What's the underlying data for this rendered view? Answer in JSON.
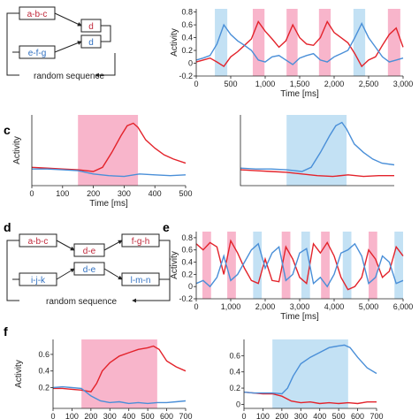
{
  "colors": {
    "red": "#e3232b",
    "blue": "#4a8fd8",
    "pink_shade": "#f7a8c2",
    "blue_shade": "#b9dcf2",
    "box_red": "#c0283a",
    "box_blue": "#2f6fc0"
  },
  "panel_labels": {
    "c": "c",
    "d": "d",
    "e": "e",
    "f": "f"
  },
  "diagram_top": {
    "box_upper": "a-b-c",
    "box_lower": "e-f-g",
    "node_upper": "d",
    "node_lower": "d",
    "footer": "random sequence"
  },
  "diagram_d": {
    "box_left_upper": "a-b-c",
    "box_left_lower": "i-j-k",
    "mid_upper": "d-e",
    "mid_lower": "d-e",
    "box_right_upper": "f-g-h",
    "box_right_lower": "l-m-n",
    "footer": "random sequence"
  },
  "chart_data": [
    {
      "id": "top-right",
      "type": "line",
      "ylabel": "Activity",
      "xlabel": "Time [ms]",
      "xlim": [
        0,
        3000
      ],
      "ylim": [
        -0.2,
        0.85
      ],
      "xticks": [
        "0",
        "500",
        "1,000",
        "1,500",
        "2,000",
        "2,500",
        "3,000"
      ],
      "yticks": [
        "0.8",
        "0.6",
        "0.4",
        "0.2",
        "0",
        "-0.2"
      ],
      "shading": [
        {
          "color": "blue",
          "from": 270,
          "to": 450
        },
        {
          "color": "pink",
          "from": 820,
          "to": 990
        },
        {
          "color": "pink",
          "from": 1310,
          "to": 1470
        },
        {
          "color": "pink",
          "from": 1780,
          "to": 1950
        },
        {
          "color": "blue",
          "from": 2280,
          "to": 2450
        },
        {
          "color": "pink",
          "from": 2780,
          "to": 2960
        }
      ],
      "series": [
        {
          "color": "red",
          "x": [
            0,
            100,
            200,
            300,
            400,
            500,
            600,
            700,
            800,
            900,
            1000,
            1100,
            1200,
            1300,
            1400,
            1500,
            1600,
            1700,
            1800,
            1900,
            2000,
            2100,
            2200,
            2300,
            2400,
            2500,
            2600,
            2700,
            2800,
            2900,
            3000
          ],
          "values": [
            0.02,
            0.05,
            0.08,
            0.02,
            -0.05,
            0.1,
            0.18,
            0.28,
            0.38,
            0.65,
            0.5,
            0.38,
            0.25,
            0.35,
            0.6,
            0.4,
            0.3,
            0.28,
            0.4,
            0.65,
            0.48,
            0.4,
            0.32,
            0.15,
            -0.05,
            0.05,
            0.1,
            0.28,
            0.45,
            0.55,
            0.25
          ]
        },
        {
          "color": "blue",
          "x": [
            0,
            100,
            200,
            300,
            400,
            500,
            600,
            700,
            800,
            900,
            1000,
            1100,
            1200,
            1300,
            1400,
            1500,
            1600,
            1700,
            1800,
            1900,
            2000,
            2100,
            2200,
            2300,
            2400,
            2500,
            2600,
            2700,
            2800,
            2900,
            3000
          ],
          "values": [
            0.05,
            0.08,
            0.12,
            0.3,
            0.6,
            0.45,
            0.35,
            0.28,
            0.2,
            0.05,
            0.02,
            0.1,
            0.12,
            0.05,
            -0.02,
            0.08,
            0.12,
            0.15,
            0.05,
            0.02,
            0.1,
            0.15,
            0.2,
            0.4,
            0.62,
            0.4,
            0.25,
            0.1,
            0.02,
            0.05,
            0.08
          ]
        }
      ]
    },
    {
      "id": "c-left",
      "type": "line",
      "ylabel": "Activity",
      "xlabel": "Time [ms]",
      "xlim": [
        0,
        500
      ],
      "ylim": [
        -0.1,
        0.75
      ],
      "xticks": [
        "0",
        "100",
        "200",
        "300",
        "400",
        "500"
      ],
      "shading": [
        {
          "color": "pink",
          "from": 150,
          "to": 345
        }
      ],
      "series": [
        {
          "color": "red",
          "x": [
            0,
            50,
            100,
            150,
            200,
            230,
            260,
            290,
            310,
            330,
            345,
            370,
            400,
            430,
            460,
            500
          ],
          "values": [
            0.12,
            0.11,
            0.1,
            0.09,
            0.07,
            0.12,
            0.3,
            0.5,
            0.62,
            0.65,
            0.6,
            0.45,
            0.35,
            0.27,
            0.22,
            0.17
          ]
        },
        {
          "color": "blue",
          "x": [
            0,
            50,
            100,
            150,
            200,
            250,
            300,
            350,
            400,
            450,
            500
          ],
          "values": [
            0.1,
            0.1,
            0.09,
            0.08,
            0.04,
            0.02,
            0.01,
            0.04,
            0.03,
            0.02,
            0.03
          ]
        }
      ]
    },
    {
      "id": "c-right",
      "type": "line",
      "xlim": [
        0,
        500
      ],
      "ylim": [
        -0.1,
        0.75
      ],
      "shading": [
        {
          "color": "blue",
          "from": 150,
          "to": 345
        }
      ],
      "series": [
        {
          "color": "red",
          "x": [
            0,
            50,
            100,
            150,
            200,
            250,
            300,
            350,
            400,
            450,
            500
          ],
          "values": [
            0.09,
            0.08,
            0.07,
            0.06,
            0.04,
            0.02,
            0.01,
            0.03,
            0.01,
            0.02,
            0.02
          ]
        },
        {
          "color": "blue",
          "x": [
            0,
            50,
            100,
            150,
            200,
            230,
            260,
            290,
            310,
            330,
            345,
            370,
            400,
            430,
            460,
            500
          ],
          "values": [
            0.11,
            0.1,
            0.1,
            0.09,
            0.07,
            0.12,
            0.3,
            0.5,
            0.62,
            0.66,
            0.58,
            0.4,
            0.3,
            0.22,
            0.17,
            0.15
          ]
        }
      ]
    },
    {
      "id": "e",
      "type": "line",
      "ylabel": "Activity",
      "xlabel": "Time [ms]",
      "xlim": [
        0,
        6000
      ],
      "ylim": [
        -0.2,
        0.9
      ],
      "xticks": [
        "0",
        "1,000",
        "2,000",
        "3,000",
        "4,000",
        "5,000",
        "6,000"
      ],
      "yticks": [
        "0.8",
        "0.6",
        "0.4",
        "0.2",
        "0",
        "-0.2"
      ],
      "shading": [
        {
          "color": "pink",
          "from": 180,
          "to": 430
        },
        {
          "color": "pink",
          "from": 900,
          "to": 1150
        },
        {
          "color": "blue",
          "from": 1650,
          "to": 1900
        },
        {
          "color": "pink",
          "from": 2480,
          "to": 2730
        },
        {
          "color": "blue",
          "from": 3050,
          "to": 3300
        },
        {
          "color": "pink",
          "from": 3620,
          "to": 3870
        },
        {
          "color": "blue",
          "from": 4250,
          "to": 4500
        },
        {
          "color": "pink",
          "from": 5000,
          "to": 5250
        },
        {
          "color": "blue",
          "from": 5750,
          "to": 6000
        }
      ],
      "series": [
        {
          "color": "red",
          "x": [
            0,
            200,
            400,
            600,
            800,
            1000,
            1200,
            1400,
            1600,
            1800,
            2000,
            2200,
            2400,
            2600,
            2800,
            3000,
            3200,
            3400,
            3600,
            3800,
            4000,
            4200,
            4400,
            4600,
            4800,
            5000,
            5200,
            5400,
            5600,
            5800,
            6000
          ],
          "values": [
            0.7,
            0.6,
            0.72,
            0.65,
            0.2,
            0.75,
            0.55,
            0.3,
            0.1,
            0.05,
            0.45,
            0.1,
            0.08,
            0.65,
            0.45,
            0.15,
            0.05,
            0.7,
            0.55,
            0.72,
            0.5,
            0.15,
            -0.05,
            0.0,
            0.15,
            0.6,
            0.45,
            0.15,
            0.25,
            0.65,
            0.5
          ]
        },
        {
          "color": "blue",
          "x": [
            0,
            200,
            400,
            600,
            800,
            1000,
            1200,
            1400,
            1600,
            1800,
            2000,
            2200,
            2400,
            2600,
            2800,
            3000,
            3200,
            3400,
            3600,
            3800,
            4000,
            4200,
            4400,
            4600,
            4800,
            5000,
            5200,
            5400,
            5600,
            5800,
            6000
          ],
          "values": [
            0.05,
            0.1,
            0.0,
            0.15,
            0.5,
            0.1,
            0.2,
            0.4,
            0.6,
            0.7,
            0.3,
            0.55,
            0.65,
            0.1,
            0.2,
            0.55,
            0.62,
            0.05,
            0.15,
            0.0,
            0.2,
            0.55,
            0.6,
            0.7,
            0.5,
            0.05,
            0.15,
            0.5,
            0.4,
            0.05,
            0.1
          ]
        }
      ]
    },
    {
      "id": "f-left",
      "type": "line",
      "ylabel": "Activity",
      "xlim": [
        0,
        700
      ],
      "ylim": [
        -0.05,
        0.78
      ],
      "xticks": [
        "0",
        "100",
        "200",
        "300",
        "400",
        "500",
        "600",
        "700"
      ],
      "yticks": [
        "0.6",
        "0.4",
        "0.2"
      ],
      "shading": [
        {
          "color": "pink",
          "from": 150,
          "to": 550
        }
      ],
      "series": [
        {
          "color": "red",
          "x": [
            0,
            50,
            100,
            150,
            200,
            230,
            260,
            300,
            350,
            400,
            450,
            500,
            530,
            560,
            600,
            650,
            700
          ],
          "values": [
            0.19,
            0.19,
            0.18,
            0.17,
            0.15,
            0.25,
            0.4,
            0.5,
            0.58,
            0.62,
            0.66,
            0.68,
            0.7,
            0.66,
            0.52,
            0.45,
            0.4
          ]
        },
        {
          "color": "blue",
          "x": [
            0,
            50,
            100,
            150,
            200,
            250,
            300,
            350,
            400,
            450,
            500,
            550,
            600,
            650,
            700
          ],
          "values": [
            0.2,
            0.21,
            0.2,
            0.19,
            0.1,
            0.04,
            0.02,
            0.03,
            0.01,
            0.02,
            0.01,
            0.02,
            0.02,
            0.03,
            0.04
          ]
        }
      ]
    },
    {
      "id": "f-right",
      "type": "line",
      "xlim": [
        0,
        700
      ],
      "ylim": [
        -0.05,
        0.8
      ],
      "xticks": [
        "0",
        "100",
        "200",
        "300",
        "400",
        "500",
        "600",
        "700"
      ],
      "yticks": [
        "0.6",
        "0.4",
        "0.2",
        "0"
      ],
      "shading": [
        {
          "color": "blue",
          "from": 150,
          "to": 550
        }
      ],
      "series": [
        {
          "color": "red",
          "x": [
            0,
            50,
            100,
            150,
            200,
            250,
            300,
            350,
            400,
            450,
            500,
            550,
            600,
            650,
            700
          ],
          "values": [
            0.15,
            0.14,
            0.13,
            0.13,
            0.1,
            0.04,
            0.02,
            0.03,
            0.01,
            0.02,
            0.01,
            0.02,
            0.01,
            0.03,
            0.03
          ]
        },
        {
          "color": "blue",
          "x": [
            0,
            50,
            100,
            150,
            200,
            230,
            260,
            300,
            350,
            400,
            450,
            500,
            530,
            560,
            600,
            650,
            700
          ],
          "values": [
            0.15,
            0.14,
            0.14,
            0.14,
            0.13,
            0.2,
            0.35,
            0.5,
            0.58,
            0.64,
            0.7,
            0.72,
            0.73,
            0.7,
            0.58,
            0.45,
            0.38
          ]
        }
      ]
    }
  ]
}
